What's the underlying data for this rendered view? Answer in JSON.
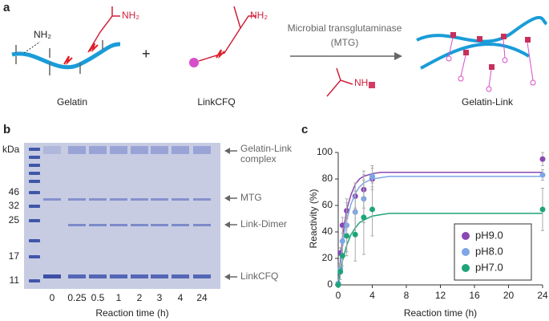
{
  "panel_labels": [
    "a",
    "b",
    "c"
  ],
  "panel_a": {
    "gelatin_group": "NH₂",
    "glutamine_group": "NH₂",
    "plus": "+",
    "gelatin": "Gelatin",
    "linkcfq_group": "NH₂",
    "linkcfq": "LinkCFQ",
    "enzyme_line1": "Microbial transglutaminase",
    "enzyme_line2": "(MTG)",
    "bond_label": "NH",
    "product": "Gelatin-Link"
  },
  "panel_b": {
    "unit": "kDa",
    "ladder": [
      "46",
      "32",
      "25",
      "17",
      "11"
    ],
    "lanes": [
      "0",
      "0.25",
      "0.5",
      "1",
      "2",
      "3",
      "4",
      "24"
    ],
    "xlabel": "Reaction time (h)",
    "bands": [
      "Gelatin-Link",
      "complex",
      "MTG",
      "Link-Dimer",
      "LinkCFQ"
    ]
  },
  "chart_data": {
    "type": "scatter",
    "xlabel": "Reaction time (h)",
    "ylabel": "Reactivity (%)",
    "x": [
      0,
      0.25,
      0.5,
      1,
      2,
      3,
      4,
      24
    ],
    "xlim": [
      0,
      24
    ],
    "xticks": [
      0,
      4,
      8,
      12,
      16,
      20,
      24
    ],
    "ylim": [
      0,
      100
    ],
    "yticks": [
      0,
      20,
      40,
      60,
      80,
      100
    ],
    "legend": "lower right",
    "series": [
      {
        "name": "pH9.0",
        "color": "#8a48b4",
        "values": [
          1,
          24,
          45,
          56,
          67,
          72,
          80,
          95
        ],
        "errors": [
          1,
          4,
          6,
          6,
          10,
          14,
          8,
          5
        ],
        "fit_x": [
          0,
          0.5,
          1,
          1.5,
          2,
          2.5,
          3,
          4,
          5,
          6,
          8,
          12,
          24
        ],
        "fit_values": [
          0,
          36,
          57,
          68,
          76,
          80,
          82,
          84,
          85,
          85,
          85,
          85,
          85
        ]
      },
      {
        "name": "pH8.0",
        "color": "#7ea6e6",
        "values": [
          1,
          12,
          33,
          45,
          55,
          65,
          82,
          83
        ],
        "errors": [
          1,
          4,
          10,
          20,
          16,
          18,
          8,
          4
        ],
        "fit_x": [
          0,
          0.5,
          1,
          1.5,
          2,
          2.5,
          3,
          4,
          5,
          6,
          8,
          12,
          24
        ],
        "fit_values": [
          0,
          29,
          49,
          61,
          69,
          74,
          77,
          80,
          81,
          82,
          82,
          82,
          82
        ]
      },
      {
        "name": "pH7.0",
        "color": "#1fa47a",
        "values": [
          0,
          10,
          22,
          37,
          38,
          51,
          57,
          57
        ],
        "errors": [
          1,
          6,
          8,
          15,
          20,
          28,
          20,
          16
        ],
        "fit_x": [
          0,
          0.5,
          1,
          1.5,
          2,
          2.5,
          3,
          4,
          5,
          6,
          8,
          12,
          24
        ],
        "fit_values": [
          0,
          18,
          30,
          38,
          43,
          47,
          49,
          52,
          53,
          54,
          54,
          54,
          54
        ]
      }
    ]
  }
}
